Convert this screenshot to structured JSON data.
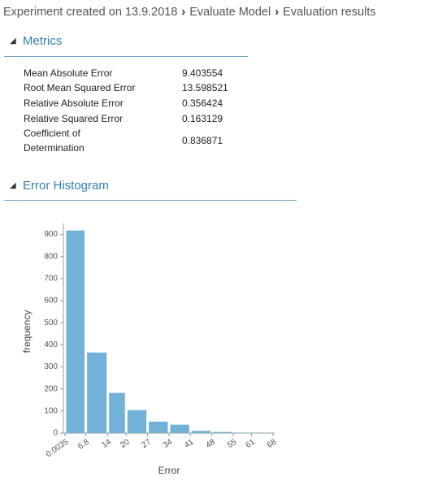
{
  "breadcrumb": [
    "Experiment created on 13.9.2018",
    "Evaluate Model",
    "Evaluation results"
  ],
  "metrics": {
    "title": "Metrics",
    "rows": [
      [
        "Mean Absolute Error",
        "9.403554"
      ],
      [
        "Root Mean Squared Error",
        "13.598521"
      ],
      [
        "Relative Absolute Error",
        "0.356424"
      ],
      [
        "Relative Squared Error",
        "0.163129"
      ],
      [
        "Coefficient of Determination",
        "0.836871"
      ]
    ]
  },
  "chart_data": {
    "type": "histogram",
    "title": "Error Histogram",
    "x_label": "Error",
    "y_label": "frequency",
    "bins": [
      0.0035,
      6.8,
      14,
      20,
      27,
      34,
      41,
      48,
      55,
      61,
      68
    ],
    "values": [
      918,
      365,
      182,
      104,
      52,
      38,
      10,
      5,
      2,
      1
    ],
    "color": "#72b2d8",
    "xlim": [
      0.0035,
      68
    ],
    "ylim": [
      0,
      950
    ],
    "yticks": [
      0,
      100,
      200,
      300,
      400,
      500,
      600,
      700,
      800,
      900
    ]
  }
}
